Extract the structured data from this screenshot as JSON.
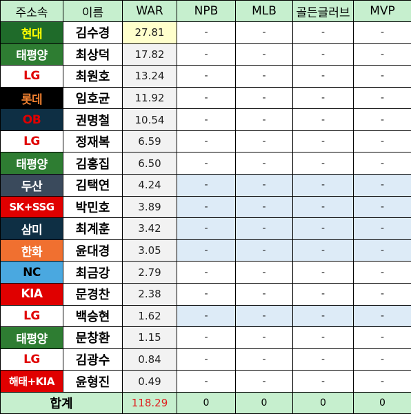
{
  "headers": {
    "team": "주소속",
    "name": "이름",
    "war": "WAR",
    "npb": "NPB",
    "mlb": "MLB",
    "golden_glove": "골든글러브",
    "mvp": "MVP"
  },
  "team_colors": {
    "현대": {
      "bg": "#1f6b2a",
      "fg": "#ffff00"
    },
    "태평양": {
      "bg": "#2e7d32",
      "fg": "#ffffff"
    },
    "LG": {
      "bg": "#ffffff",
      "fg": "#e00000"
    },
    "롯데": {
      "bg": "#000000",
      "fg": "#f08030"
    },
    "OB": {
      "bg": "#0e2f44",
      "fg": "#e00000"
    },
    "두산": {
      "bg": "#3a4a5c",
      "fg": "#ffffff"
    },
    "SK+SSG": {
      "bg": "#e00000",
      "fg": "#ffffff"
    },
    "삼미": {
      "bg": "#0e2f44",
      "fg": "#ffffff"
    },
    "한화": {
      "bg": "#f07030",
      "fg": "#ffffff"
    },
    "NC": {
      "bg": "#4aa8e0",
      "fg": "#000000"
    },
    "KIA": {
      "bg": "#e00000",
      "fg": "#ffffff"
    },
    "해태+KIA": {
      "bg": "#e00000",
      "fg": "#ffffff"
    }
  },
  "rows": [
    {
      "team": "현대",
      "name": "김수경",
      "war": "27.81",
      "npb": "-",
      "mlb": "-",
      "golden_glove": "-",
      "mvp": "-"
    },
    {
      "team": "태평양",
      "name": "최상덕",
      "war": "17.82",
      "npb": "-",
      "mlb": "-",
      "golden_glove": "-",
      "mvp": "-"
    },
    {
      "team": "LG",
      "name": "최원호",
      "war": "13.24",
      "npb": "-",
      "mlb": "-",
      "golden_glove": "-",
      "mvp": "-"
    },
    {
      "team": "롯데",
      "name": "임호균",
      "war": "11.92",
      "npb": "-",
      "mlb": "-",
      "golden_glove": "-",
      "mvp": "-"
    },
    {
      "team": "OB",
      "name": "권명철",
      "war": "10.54",
      "npb": "-",
      "mlb": "-",
      "golden_glove": "-",
      "mvp": "-"
    },
    {
      "team": "LG",
      "name": "정재복",
      "war": "6.59",
      "npb": "-",
      "mlb": "-",
      "golden_glove": "-",
      "mvp": "-"
    },
    {
      "team": "태평양",
      "name": "김홍집",
      "war": "6.50",
      "npb": "-",
      "mlb": "-",
      "golden_glove": "-",
      "mvp": "-"
    },
    {
      "team": "두산",
      "name": "김택연",
      "war": "4.24",
      "npb": "-",
      "mlb": "-",
      "golden_glove": "-",
      "mvp": "-"
    },
    {
      "team": "SK+SSG",
      "name": "박민호",
      "war": "3.89",
      "npb": "-",
      "mlb": "-",
      "golden_glove": "-",
      "mvp": "-"
    },
    {
      "team": "삼미",
      "name": "최계훈",
      "war": "3.42",
      "npb": "-",
      "mlb": "-",
      "golden_glove": "-",
      "mvp": "-"
    },
    {
      "team": "한화",
      "name": "윤대경",
      "war": "3.05",
      "npb": "-",
      "mlb": "-",
      "golden_glove": "-",
      "mvp": "-"
    },
    {
      "team": "NC",
      "name": "최금강",
      "war": "2.79",
      "npb": "-",
      "mlb": "-",
      "golden_glove": "-",
      "mvp": "-"
    },
    {
      "team": "KIA",
      "name": "문경찬",
      "war": "2.38",
      "npb": "-",
      "mlb": "-",
      "golden_glove": "-",
      "mvp": "-"
    },
    {
      "team": "LG",
      "name": "백승현",
      "war": "1.62",
      "npb": "-",
      "mlb": "-",
      "golden_glove": "-",
      "mvp": "-"
    },
    {
      "team": "태평양",
      "name": "문창환",
      "war": "1.15",
      "npb": "-",
      "mlb": "-",
      "golden_glove": "-",
      "mvp": "-"
    },
    {
      "team": "LG",
      "name": "김광수",
      "war": "0.84",
      "npb": "-",
      "mlb": "-",
      "golden_glove": "-",
      "mvp": "-"
    },
    {
      "team": "해태+KIA",
      "name": "윤형진",
      "war": "0.49",
      "npb": "-",
      "mlb": "-",
      "golden_glove": "-",
      "mvp": "-"
    }
  ],
  "total": {
    "label": "합계",
    "war": "118.29",
    "npb": "0",
    "mlb": "0",
    "golden_glove": "0",
    "mvp": "0"
  }
}
